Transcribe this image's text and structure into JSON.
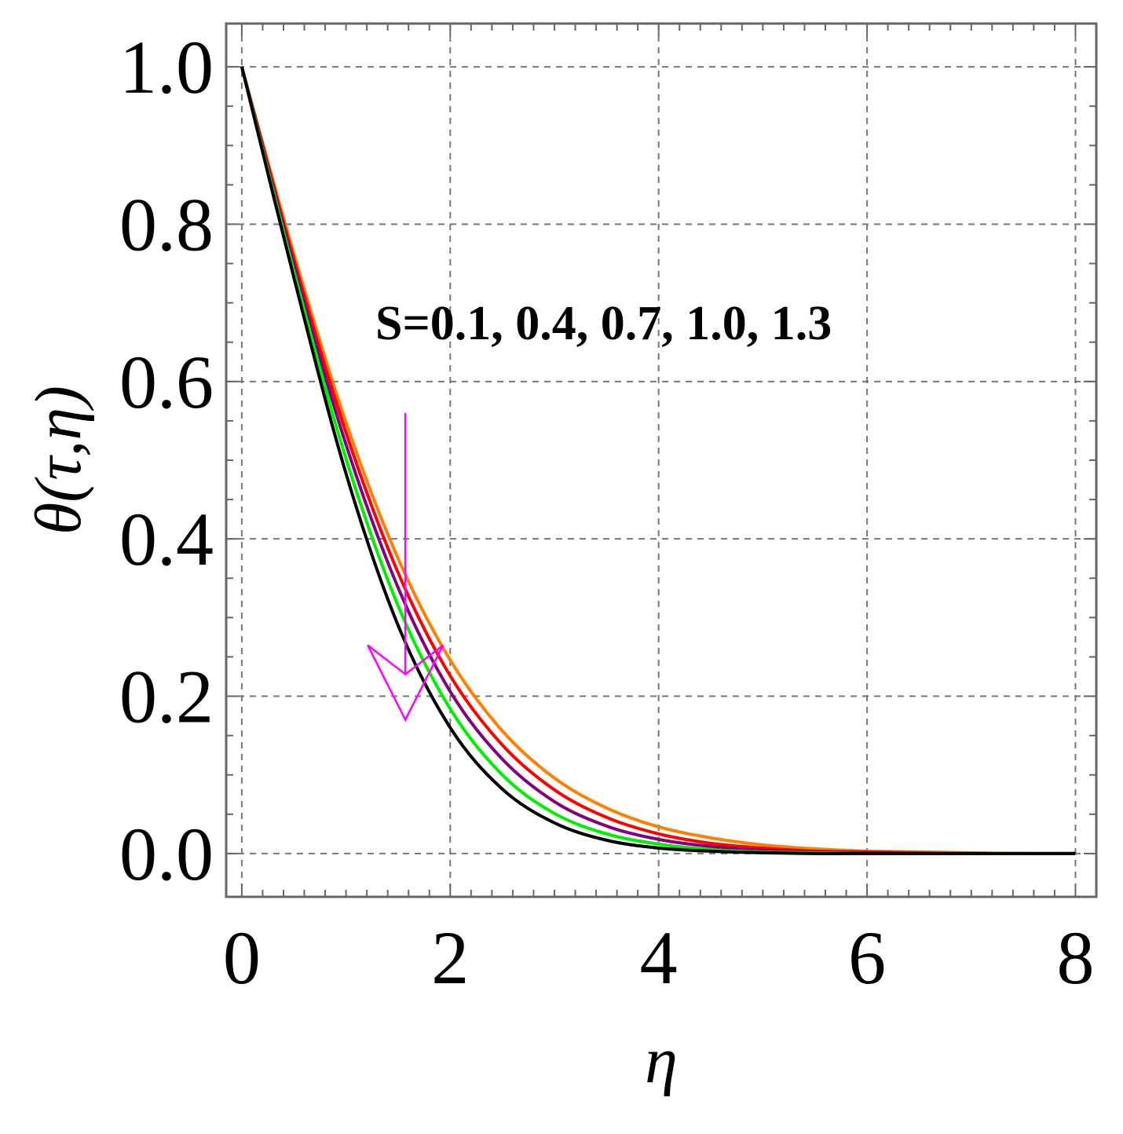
{
  "chart_data": {
    "type": "line",
    "xlabel": "η",
    "ylabel": "θ(τ,η)",
    "xlim": [
      -0.15,
      8.2
    ],
    "ylim": [
      -0.055,
      1.055
    ],
    "xticks": [
      0,
      2,
      4,
      6,
      8
    ],
    "xtick_labels": [
      "0",
      "2",
      "4",
      "6",
      "8"
    ],
    "yticks": [
      0.0,
      0.2,
      0.4,
      0.6,
      0.8,
      1.0
    ],
    "ytick_labels": [
      "0.0",
      "0.2",
      "0.4",
      "0.6",
      "0.8",
      "1.0"
    ],
    "grid": true,
    "grid_style": "dashed",
    "annotation": {
      "text": "S=0.1, 0.4, 0.7, 1.0, 1.3",
      "arrow_color": "#ff00ff",
      "arrow_x": 1.57,
      "arrow_from_y": 0.56,
      "arrow_to_y": 0.17
    },
    "x": [
      0,
      0.5,
      1.0,
      1.5,
      2.0,
      2.5,
      3.0,
      3.5,
      4.0,
      4.5,
      5.0,
      5.5,
      6.0,
      6.5,
      7.0,
      7.5,
      8.0
    ],
    "series": [
      {
        "color": "#ff7f00",
        "values": [
          1.0,
          0.762,
          0.548,
          0.375,
          0.246,
          0.156,
          0.096,
          0.058,
          0.034,
          0.02,
          0.011,
          0.006,
          0.003,
          0.002,
          0.001,
          0.0,
          0.0
        ]
      },
      {
        "color": "#ff0000",
        "values": [
          1.0,
          0.755,
          0.535,
          0.357,
          0.226,
          0.138,
          0.081,
          0.046,
          0.025,
          0.013,
          0.007,
          0.003,
          0.002,
          0.001,
          0.0,
          0.0,
          0.0
        ]
      },
      {
        "color": "#800080",
        "values": [
          1.0,
          0.748,
          0.52,
          0.338,
          0.206,
          0.12,
          0.066,
          0.035,
          0.018,
          0.009,
          0.004,
          0.002,
          0.001,
          0.0,
          0.0,
          0.0,
          0.0
        ]
      },
      {
        "color": "#00ee00",
        "values": [
          1.0,
          0.74,
          0.502,
          0.315,
          0.184,
          0.1,
          0.051,
          0.025,
          0.012,
          0.005,
          0.002,
          0.001,
          0.0,
          0.0,
          0.0,
          0.0,
          0.0
        ]
      },
      {
        "color": "#000000",
        "values": [
          1.0,
          0.732,
          0.483,
          0.29,
          0.16,
          0.082,
          0.039,
          0.017,
          0.007,
          0.003,
          0.001,
          0.0,
          0.0,
          0.0,
          0.0,
          0.0,
          0.0
        ]
      }
    ]
  }
}
